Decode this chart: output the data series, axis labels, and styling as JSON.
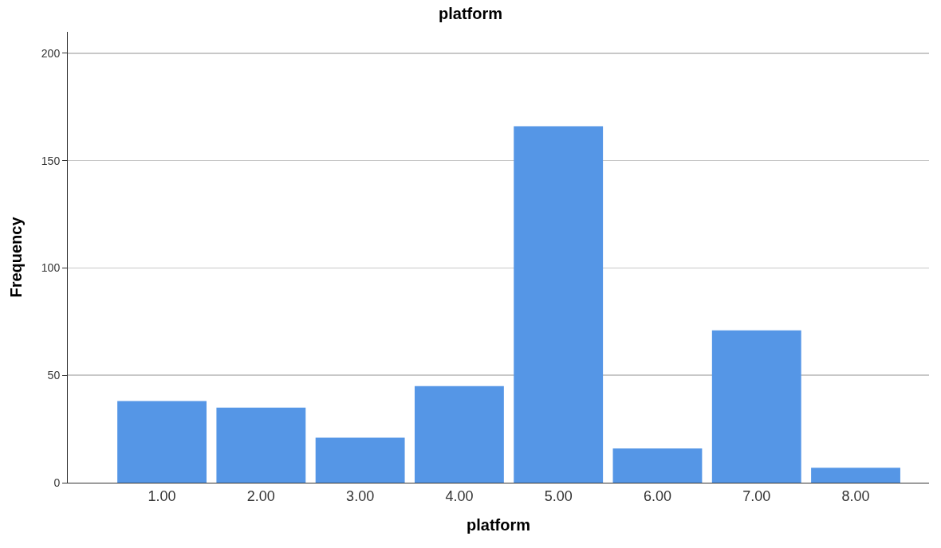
{
  "chart_data": {
    "type": "bar",
    "title": "platform",
    "xlabel": "platform",
    "ylabel": "Frequency",
    "categories": [
      "1.00",
      "2.00",
      "3.00",
      "4.00",
      "5.00",
      "6.00",
      "7.00",
      "8.00"
    ],
    "values": [
      38,
      35,
      21,
      45,
      166,
      16,
      71,
      7
    ],
    "color": "#5596e6",
    "ylim": [
      0,
      210
    ],
    "yticks": [
      0,
      50,
      100,
      150,
      200
    ],
    "grid": "y"
  }
}
